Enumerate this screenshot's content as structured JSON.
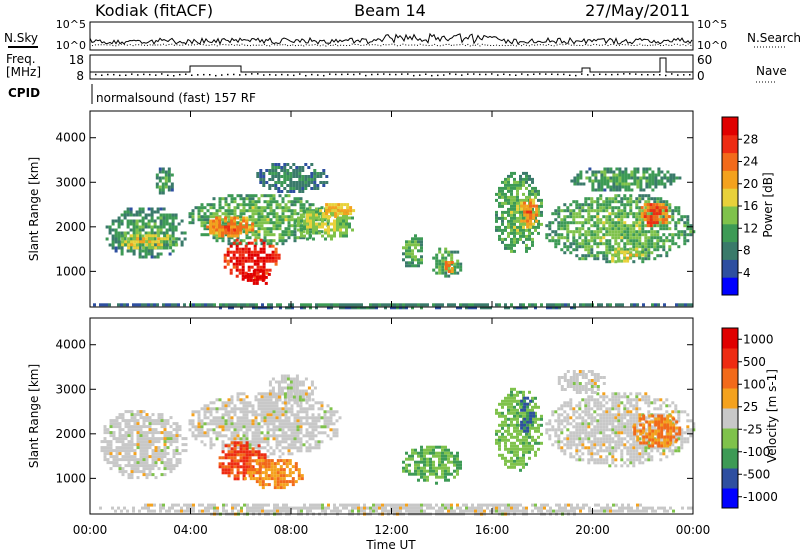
{
  "header": {
    "station": "Kodiak (fitACF)",
    "beam": "Beam 14",
    "date": "27/May/2011"
  },
  "noise_panel": {
    "left_label": "N.Sky",
    "right_label": "N.Search",
    "ticks_left": [
      "10^5",
      "10^0"
    ],
    "ticks_right": [
      "10^5",
      "10^0"
    ]
  },
  "freq_panel": {
    "left_label_1": "Freq.",
    "left_label_2": "[MHz]",
    "right_label": "Nave",
    "ticks_left": [
      "18",
      "8"
    ],
    "ticks_right": [
      "60",
      "0"
    ]
  },
  "cpid": {
    "label": "CPID",
    "text": "normalsound (fast) 157 RF"
  },
  "x_axis": {
    "title": "Time UT",
    "ticks": [
      "00:00",
      "04:00",
      "08:00",
      "12:00",
      "16:00",
      "20:00",
      "00:00"
    ]
  },
  "colors": {
    "power_scale": [
      "#0000ff",
      "#2e4fa0",
      "#3a7a6a",
      "#3d9a55",
      "#7fc24b",
      "#e8d13a",
      "#f4a21e",
      "#f26a1a",
      "#ee2b12",
      "#e00000"
    ],
    "velocity_scale": [
      "#0000ff",
      "#2e4fa0",
      "#3d9a55",
      "#7fc24b",
      "#c8c8c8",
      "#f4a21e",
      "#f26a1a",
      "#ee2b12",
      "#e00000"
    ]
  },
  "chart_data": [
    {
      "type": "heatmap",
      "name": "power",
      "xlabel": "",
      "ylabel": "Slant Range [km]",
      "xlim": [
        0,
        24
      ],
      "ylim": [
        200,
        4600
      ],
      "yticks": [
        "1000",
        "2000",
        "3000",
        "4000"
      ],
      "ytick_values": [
        1000,
        2000,
        3000,
        4000
      ],
      "colorbar": {
        "label": "Power [dB]",
        "range": [
          0,
          32
        ],
        "ticks": [
          "4",
          "8",
          "12",
          "16",
          "20",
          "24",
          "28"
        ],
        "tick_values": [
          4,
          8,
          12,
          16,
          20,
          24,
          28
        ]
      },
      "regions": [
        {
          "t": [
            0.5,
            3.8
          ],
          "r": [
            1300,
            2500
          ],
          "v": 8
        },
        {
          "t": [
            1.0,
            3.5
          ],
          "r": [
            1500,
            1900
          ],
          "v": 14
        },
        {
          "t": [
            2.5,
            3.3
          ],
          "r": [
            2700,
            3400
          ],
          "v": 8
        },
        {
          "t": [
            3.8,
            9.5
          ],
          "r": [
            1600,
            2800
          ],
          "v": 10
        },
        {
          "t": [
            4.5,
            6.5
          ],
          "r": [
            1800,
            2300
          ],
          "v": 20
        },
        {
          "t": [
            5.2,
            7.5
          ],
          "r": [
            800,
            1800
          ],
          "v": 26
        },
        {
          "t": [
            6.0,
            7.2
          ],
          "r": [
            700,
            1100
          ],
          "v": 30
        },
        {
          "t": [
            8.0,
            10.5
          ],
          "r": [
            1700,
            2500
          ],
          "v": 12
        },
        {
          "t": [
            9.0,
            10.5
          ],
          "r": [
            2200,
            2600
          ],
          "v": 16
        },
        {
          "t": [
            6.5,
            9.5
          ],
          "r": [
            2800,
            3500
          ],
          "v": 6
        },
        {
          "t": [
            12.3,
            13.3
          ],
          "r": [
            1100,
            1900
          ],
          "v": 9
        },
        {
          "t": [
            13.5,
            14.8
          ],
          "r": [
            900,
            1600
          ],
          "v": 10
        },
        {
          "t": [
            14.0,
            14.5
          ],
          "r": [
            1000,
            1300
          ],
          "v": 20
        },
        {
          "t": [
            16.0,
            18.0
          ],
          "r": [
            1400,
            3300
          ],
          "v": 10
        },
        {
          "t": [
            17.0,
            17.8
          ],
          "r": [
            2000,
            2700
          ],
          "v": 20
        },
        {
          "t": [
            18.0,
            24.0
          ],
          "r": [
            1200,
            2800
          ],
          "v": 10
        },
        {
          "t": [
            20.5,
            22.0
          ],
          "r": [
            1200,
            1600
          ],
          "v": 14
        },
        {
          "t": [
            21.8,
            23.0
          ],
          "r": [
            2000,
            2600
          ],
          "v": 22
        },
        {
          "t": [
            19.0,
            23.5
          ],
          "r": [
            2800,
            3400
          ],
          "v": 8
        },
        {
          "t": [
            0.0,
            24.0
          ],
          "r": [
            200,
            350
          ],
          "v": 6
        }
      ]
    },
    {
      "type": "heatmap",
      "name": "velocity",
      "xlabel": "Time UT",
      "ylabel": "Slant Range [km]",
      "xlim": [
        0,
        24
      ],
      "ylim": [
        200,
        4600
      ],
      "yticks": [
        "1000",
        "2000",
        "3000",
        "4000"
      ],
      "ytick_values": [
        1000,
        2000,
        3000,
        4000
      ],
      "colorbar": {
        "label": "Velocity [m s-1]",
        "range": [
          -1200,
          1200
        ],
        "ticks": [
          "1000",
          "500",
          "100",
          "25",
          "-25",
          "-100",
          "-500",
          "-1000"
        ],
        "tick_values": [
          1000,
          500,
          100,
          25,
          -25,
          -100,
          -500,
          -1000
        ]
      },
      "regions": [
        {
          "t": [
            0.3,
            3.8
          ],
          "r": [
            1000,
            2600
          ],
          "v": 0
        },
        {
          "t": [
            3.8,
            10.0
          ],
          "r": [
            1500,
            3000
          ],
          "v": 0
        },
        {
          "t": [
            5.0,
            7.0
          ],
          "r": [
            1000,
            1900
          ],
          "v": 700
        },
        {
          "t": [
            6.0,
            8.5
          ],
          "r": [
            800,
            1500
          ],
          "v": 400
        },
        {
          "t": [
            7.0,
            9.0
          ],
          "r": [
            2700,
            3400
          ],
          "v": 0
        },
        {
          "t": [
            12.3,
            14.8
          ],
          "r": [
            900,
            1800
          ],
          "v": -400
        },
        {
          "t": [
            16.0,
            18.0
          ],
          "r": [
            1200,
            3100
          ],
          "v": -300
        },
        {
          "t": [
            17.0,
            17.6
          ],
          "r": [
            2000,
            2900
          ],
          "v": -700
        },
        {
          "t": [
            18.0,
            24.0
          ],
          "r": [
            1300,
            3000
          ],
          "v": 0
        },
        {
          "t": [
            21.5,
            23.5
          ],
          "r": [
            1700,
            2500
          ],
          "v": 400
        },
        {
          "t": [
            18.5,
            20.5
          ],
          "r": [
            2900,
            3500
          ],
          "v": 0
        },
        {
          "t": [
            0.0,
            24.0
          ],
          "r": [
            200,
            500
          ],
          "v": 0
        }
      ]
    }
  ]
}
